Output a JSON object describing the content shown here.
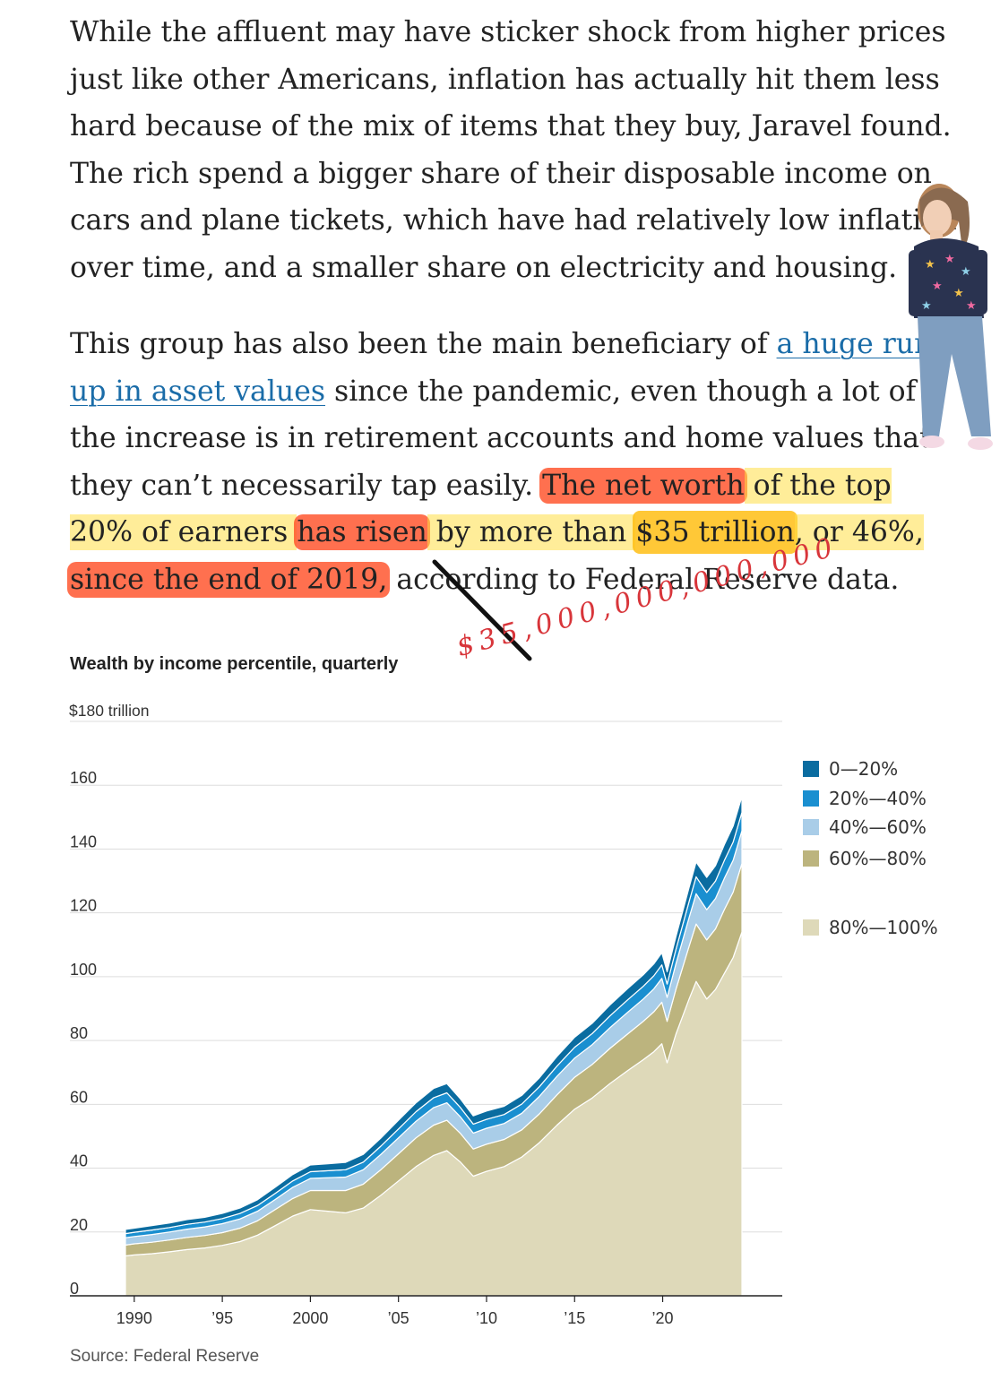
{
  "article": {
    "p1": "While the affluent may have sticker shock from higher prices just like other Americans, inflation has actually hit them less hard because of the mix of items that they buy, Jaravel found. The rich spend a bigger share of their disposable income on cars and plane tickets, which have had relatively low inflation over time, and a smaller share on electricity and housing.",
    "p2_a": "This group has also been the main beneficiary of ",
    "p2_link": "a huge run-up in asset values",
    "p2_b": " since the pandemic, even though a lot of the increase is in retirement accounts and home values that they can’t necessarily tap easily. ",
    "p2_h1": "The net worth",
    "p2_h2": " of the top 20% of earners ",
    "p2_h3": "has risen",
    "p2_h4": " by more than ",
    "p2_h5": "$35 trillion",
    "p2_h6": ", or 46%, ",
    "p2_h7": "since the end of 2019,",
    "p2_c": " according to Federal Reserve data."
  },
  "annotation": {
    "handwritten": "$35,000,000,000,000",
    "color": "#d8353a"
  },
  "chart_data": {
    "type": "area",
    "stacked": true,
    "title": "Wealth by income percentile, quarterly",
    "y_top_label": "$180 trillion",
    "ylim": [
      0,
      180
    ],
    "yticks": [
      0,
      20,
      40,
      60,
      80,
      100,
      120,
      140,
      160
    ],
    "ytick_labels": [
      "0",
      "20",
      "40",
      "60",
      "80",
      "100",
      "120",
      "140",
      "160"
    ],
    "xlim": [
      1989.0,
      2025.0
    ],
    "xticks": [
      1990,
      1995,
      2000,
      2005,
      2010,
      2015,
      2020
    ],
    "xtick_labels": [
      "1990",
      "’95",
      "2000",
      "’05",
      "’10",
      "’15",
      "’20"
    ],
    "grid": true,
    "legend_position": "right",
    "x": [
      1989.5,
      1990,
      1991,
      1992,
      1993,
      1994,
      1995,
      1996,
      1997,
      1998,
      1999,
      2000,
      2001,
      2002,
      2003,
      2004,
      2005,
      2006,
      2007,
      2007.75,
      2008.5,
      2009.25,
      2010,
      2011,
      2012,
      2013,
      2014,
      2015,
      2016,
      2017,
      2018,
      2018.9,
      2019.5,
      2019.95,
      2020.25,
      2020.75,
      2021.5,
      2021.9,
      2022.5,
      2023,
      2023.5,
      2024,
      2024.5
    ],
    "series": [
      {
        "name": "80%—100%",
        "color": "#ded9b9",
        "values": [
          12.5,
          12.8,
          13.2,
          13.8,
          14.5,
          15.0,
          15.8,
          17.0,
          19.0,
          22.0,
          25.0,
          27.0,
          26.5,
          26.0,
          27.5,
          31.5,
          36.0,
          40.5,
          44.0,
          45.5,
          42.0,
          37.5,
          39.0,
          40.5,
          43.5,
          48.0,
          53.5,
          58.5,
          62.0,
          66.5,
          70.5,
          74.0,
          76.5,
          79.0,
          73.0,
          82.0,
          93.0,
          98.5,
          93.0,
          96.0,
          101.0,
          106.0,
          114.0
        ]
      },
      {
        "name": "60%—80%",
        "color": "#bcb47e",
        "values": [
          3.4,
          3.5,
          3.6,
          3.7,
          3.8,
          3.9,
          4.0,
          4.2,
          4.5,
          5.0,
          5.5,
          6.0,
          6.5,
          7.0,
          7.5,
          8.0,
          8.5,
          9.0,
          9.5,
          9.5,
          9.0,
          8.5,
          8.5,
          8.5,
          8.5,
          9.0,
          9.5,
          10.0,
          10.5,
          11.0,
          11.5,
          12.0,
          12.5,
          13.0,
          13.0,
          14.0,
          16.5,
          18.0,
          18.5,
          19.0,
          20.0,
          20.5,
          21.5
        ]
      },
      {
        "name": "40%—60%",
        "color": "#a9cde8",
        "values": [
          2.3,
          2.3,
          2.4,
          2.5,
          2.6,
          2.7,
          2.8,
          2.9,
          3.0,
          3.2,
          3.5,
          3.8,
          4.0,
          4.2,
          4.5,
          4.8,
          5.0,
          5.2,
          5.5,
          5.5,
          5.2,
          5.0,
          5.0,
          5.0,
          5.2,
          5.5,
          5.8,
          6.0,
          6.2,
          6.5,
          6.8,
          7.0,
          7.2,
          7.5,
          7.5,
          8.0,
          9.0,
          9.5,
          9.5,
          9.5,
          9.8,
          10.0,
          10.2
        ]
      },
      {
        "name": "20%—40%",
        "color": "#1a8fd0",
        "values": [
          1.3,
          1.3,
          1.4,
          1.4,
          1.5,
          1.5,
          1.6,
          1.7,
          1.8,
          1.9,
          2.0,
          2.1,
          2.2,
          2.3,
          2.4,
          2.6,
          2.8,
          3.0,
          3.1,
          3.1,
          2.9,
          2.8,
          2.8,
          2.8,
          2.9,
          3.0,
          3.2,
          3.4,
          3.5,
          3.7,
          3.9,
          4.0,
          4.1,
          4.2,
          4.2,
          4.5,
          5.0,
          5.3,
          5.4,
          5.5,
          5.6,
          5.7,
          5.8
        ]
      },
      {
        "name": "0—20%",
        "color": "#0a6ca0",
        "values": [
          1.3,
          1.3,
          1.4,
          1.4,
          1.5,
          1.5,
          1.6,
          1.7,
          1.8,
          1.9,
          2.0,
          2.1,
          2.2,
          2.3,
          2.4,
          2.5,
          2.7,
          2.8,
          2.9,
          2.9,
          2.7,
          2.6,
          2.6,
          2.6,
          2.7,
          2.8,
          3.0,
          3.1,
          3.2,
          3.4,
          3.5,
          3.6,
          3.7,
          3.8,
          3.8,
          4.0,
          4.4,
          4.6,
          4.7,
          4.8,
          4.9,
          5.0,
          5.0
        ]
      }
    ],
    "source": "Source: Federal Reserve"
  }
}
